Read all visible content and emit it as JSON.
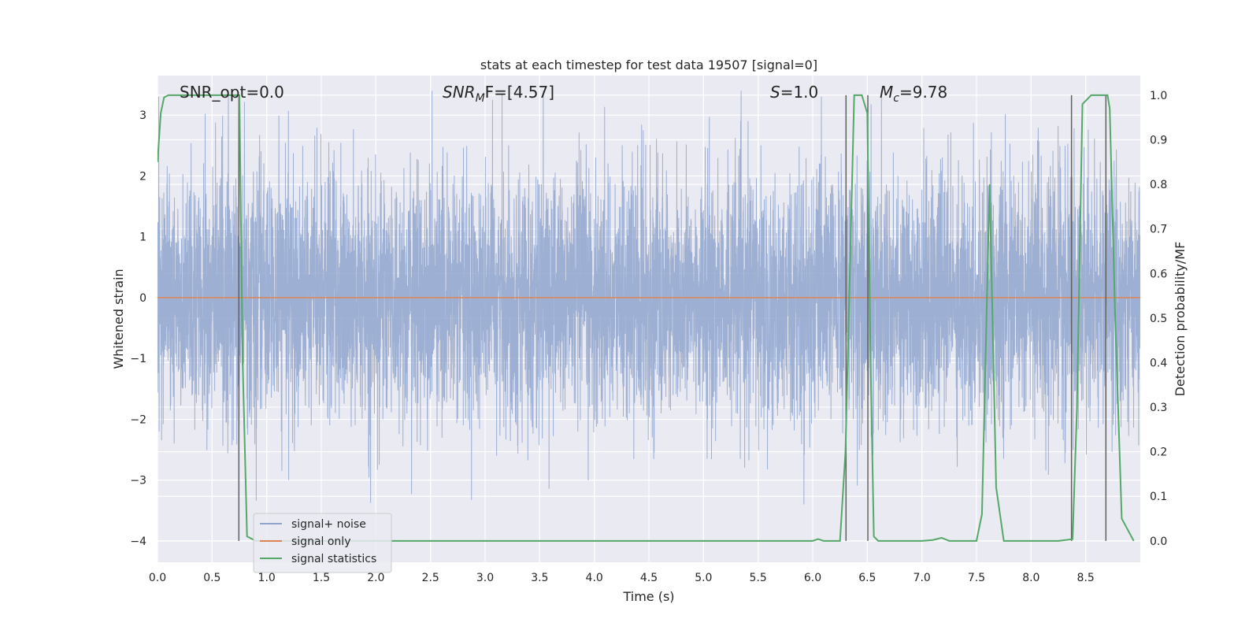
{
  "chart_data": {
    "type": "line",
    "title": "stats at each timestep for test data 19507 [signal=0]",
    "xlabel": "Time (s)",
    "ylabel": "Whitened strain",
    "y2label": "Detection probability/MF",
    "xlim": [
      0.0,
      9.0
    ],
    "ylim": [
      -4.35,
      3.65
    ],
    "y2lim": [
      -0.048,
      1.044
    ],
    "x_ticks": [
      "0.0",
      "0.5",
      "1.0",
      "1.5",
      "2.0",
      "2.5",
      "3.0",
      "3.5",
      "4.0",
      "4.5",
      "5.0",
      "5.5",
      "6.0",
      "6.5",
      "7.0",
      "7.5",
      "8.0",
      "8.5"
    ],
    "y_ticks": [
      "3",
      "2",
      "1",
      "0",
      "−1",
      "−2",
      "−3",
      "−4"
    ],
    "y2_ticks": [
      "1.0",
      "0.9",
      "0.8",
      "0.7",
      "0.6",
      "0.5",
      "0.4",
      "0.3",
      "0.2",
      "0.1",
      "0.0"
    ],
    "grid": true,
    "legend_position": "lower-left",
    "annotations": {
      "snr_opt": "SNR_opt=0.0",
      "snr_mf_base": "SNR",
      "snr_mf_sub": "M",
      "snr_mf_rest": "F=[4.57]",
      "s_base": "S",
      "s_rest": "=1.0",
      "mc_base": "M",
      "mc_sub": "c",
      "mc_rest": "=9.78"
    },
    "series": [
      {
        "name": "signal+ noise",
        "color": "#8fa4cc",
        "axis": "left",
        "noise_amplitude_range": [
          -4.0,
          3.4
        ]
      },
      {
        "name": "signal only",
        "color": "#dd8452",
        "axis": "left",
        "x": [
          0.0,
          9.0
        ],
        "y": [
          0.0,
          0.0
        ]
      },
      {
        "name": "signal statistics",
        "color": "#55a868",
        "axis": "right",
        "x": [
          0.0,
          0.03,
          0.06,
          0.1,
          0.15,
          0.2,
          0.3,
          0.5,
          0.7,
          0.74,
          0.75,
          0.78,
          0.82,
          0.9,
          1.5,
          3.0,
          5.0,
          6.0,
          6.05,
          6.1,
          6.25,
          6.3,
          6.34,
          6.38,
          6.45,
          6.5,
          6.53,
          6.56,
          6.6,
          7.0,
          7.1,
          7.18,
          7.25,
          7.5,
          7.55,
          7.62,
          7.68,
          7.75,
          8.0,
          8.25,
          8.38,
          8.42,
          8.47,
          8.55,
          8.7,
          8.72,
          8.77,
          8.83,
          8.94
        ],
        "y": [
          0.85,
          0.96,
          0.995,
          1.0,
          1.0,
          1.0,
          1.0,
          1.0,
          1.0,
          1.0,
          1.0,
          0.4,
          0.01,
          0.0,
          0.0,
          0.0,
          0.0,
          0.0,
          0.004,
          0.0,
          0.0,
          0.2,
          0.6,
          1.0,
          1.0,
          0.96,
          0.4,
          0.01,
          0.0,
          0.0,
          0.002,
          0.007,
          0.0,
          0.0,
          0.06,
          0.8,
          0.12,
          0.0,
          0.0,
          0.0,
          0.004,
          0.3,
          0.98,
          1.0,
          1.0,
          0.97,
          0.5,
          0.05,
          0.0
        ]
      }
    ],
    "vertical_lines_x": [
      0.745,
      6.305,
      6.505,
      8.37,
      8.685
    ],
    "vertical_lines_color": "#606060"
  }
}
